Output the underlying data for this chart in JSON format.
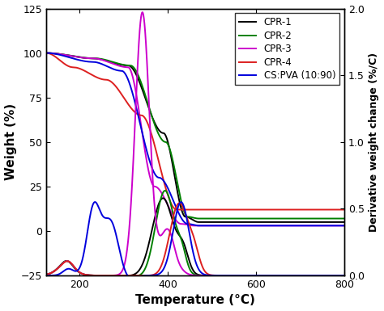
{
  "xlabel": "Temperature (°C)",
  "ylabel_left": "Weight (%)",
  "ylabel_right": "Derivative weight change (%/C)",
  "xlim": [
    125,
    800
  ],
  "ylim_left": [
    -25,
    125
  ],
  "ylim_right": [
    0.0,
    2.0
  ],
  "xticks": [
    200,
    400,
    600,
    800
  ],
  "yticks_left": [
    -25,
    0,
    25,
    50,
    75,
    100,
    125
  ],
  "yticks_right": [
    0.0,
    0.5,
    1.0,
    1.5,
    2.0
  ],
  "legend_labels": [
    "CPR-1",
    "CPR-2",
    "CPR-3",
    "CPR-4",
    "CS:PVA (10:90)"
  ],
  "colors": {
    "CPR-1": "#000000",
    "CPR-2": "#008000",
    "CPR-3": "#cc00cc",
    "CPR-4": "#dd2020",
    "CS:PVA (10:90)": "#0000dd"
  },
  "linewidth": 1.4
}
